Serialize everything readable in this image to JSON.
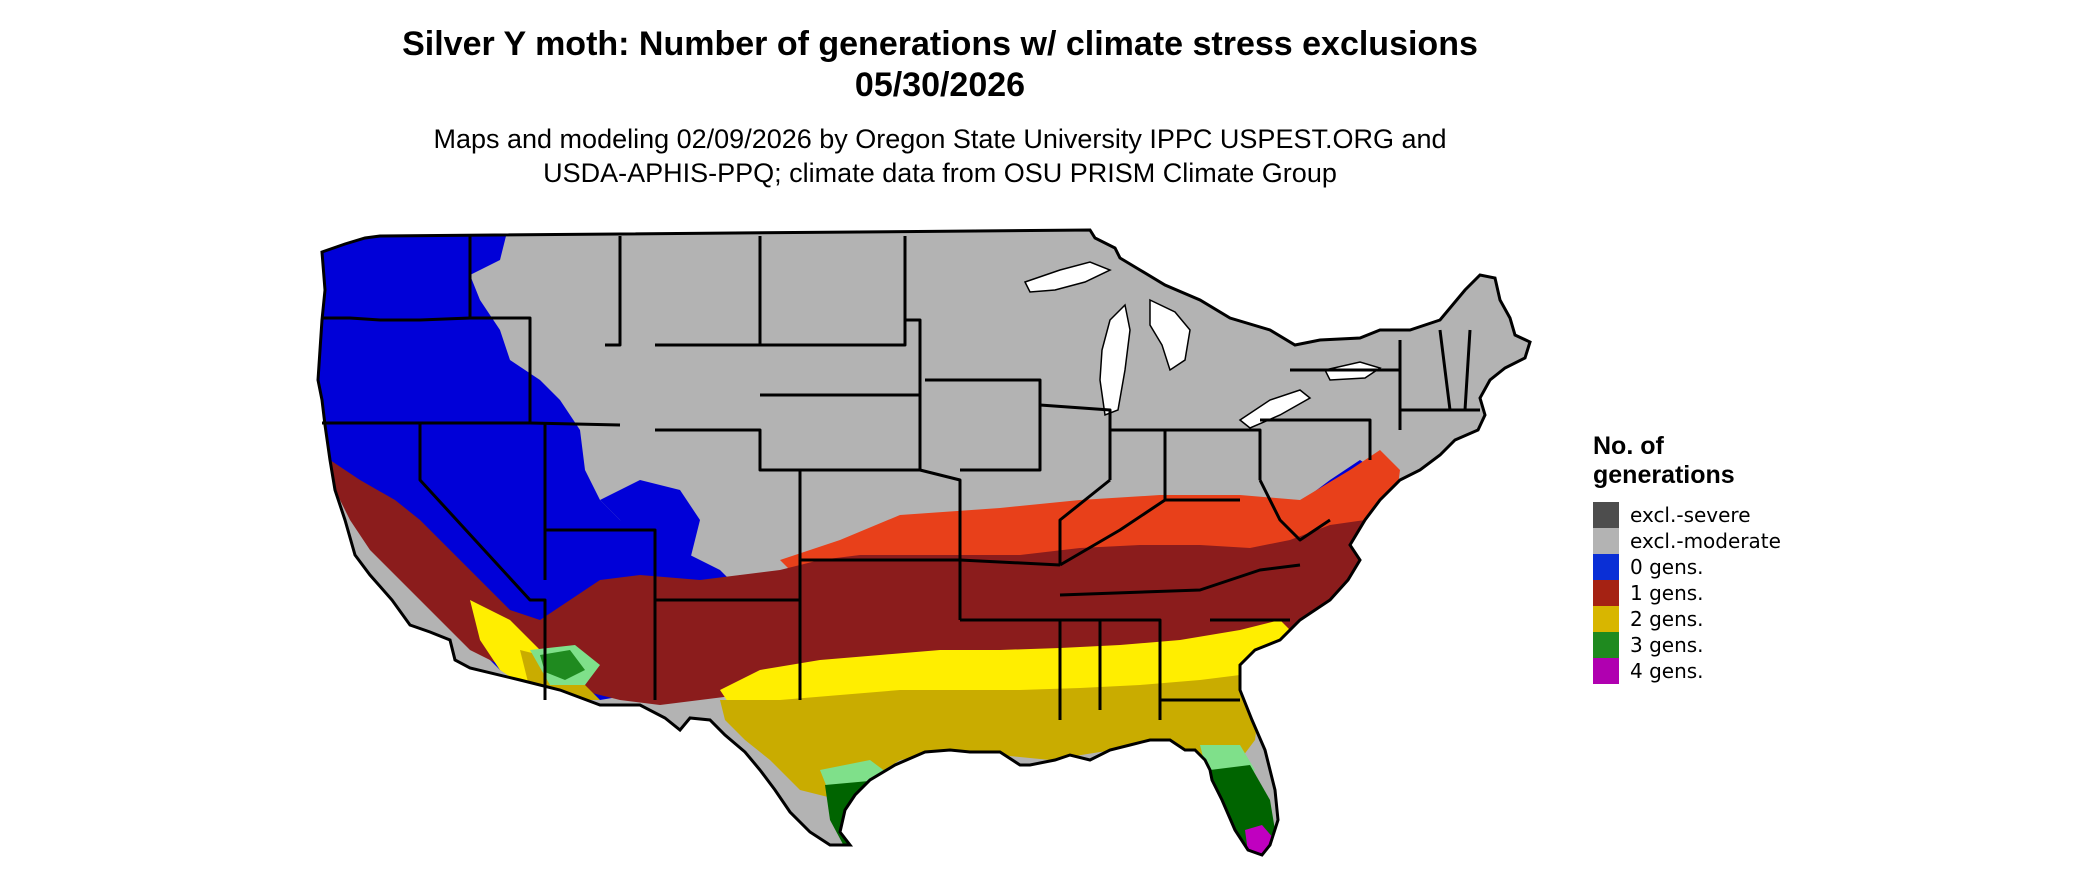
{
  "title": {
    "line1": "Silver Y moth: Number of generations w/ climate stress exclusions",
    "line2": "05/30/2026"
  },
  "subtitle": {
    "line1": "Maps and modeling 02/09/2026 by Oregon State University IPPC USPEST.ORG and",
    "line2": "USDA-APHIS-PPQ; climate data from OSU PRISM Climate Group"
  },
  "legend": {
    "title_line1": "No. of",
    "title_line2": "generations",
    "items": [
      {
        "label": "excl.-severe",
        "color": "#4d4d4d"
      },
      {
        "label": "excl.-moderate",
        "color": "#b3b3b3"
      },
      {
        "label": "0 gens.",
        "color": "#0a2fd6"
      },
      {
        "label": "1 gens.",
        "color": "#a52213"
      },
      {
        "label": "2 gens.",
        "color": "#d8b600"
      },
      {
        "label": "3 gens.",
        "color": "#1f8a1f"
      },
      {
        "label": "4 gens.",
        "color": "#b000b0"
      }
    ]
  },
  "map": {
    "region": "Contiguous United States",
    "colors": {
      "excl_moderate": "#b3b3b3",
      "zero_gens": "#0000d8",
      "one_gens": "#8b1c1c",
      "one_gens_margin": "#e8401a",
      "two_gens": "#c9ac00",
      "two_gens_margin": "#ffee00",
      "three_gens": "#006400",
      "three_gens_margin": "#7fe08a",
      "four_gens": "#c000c0",
      "state_border": "#000000"
    }
  }
}
